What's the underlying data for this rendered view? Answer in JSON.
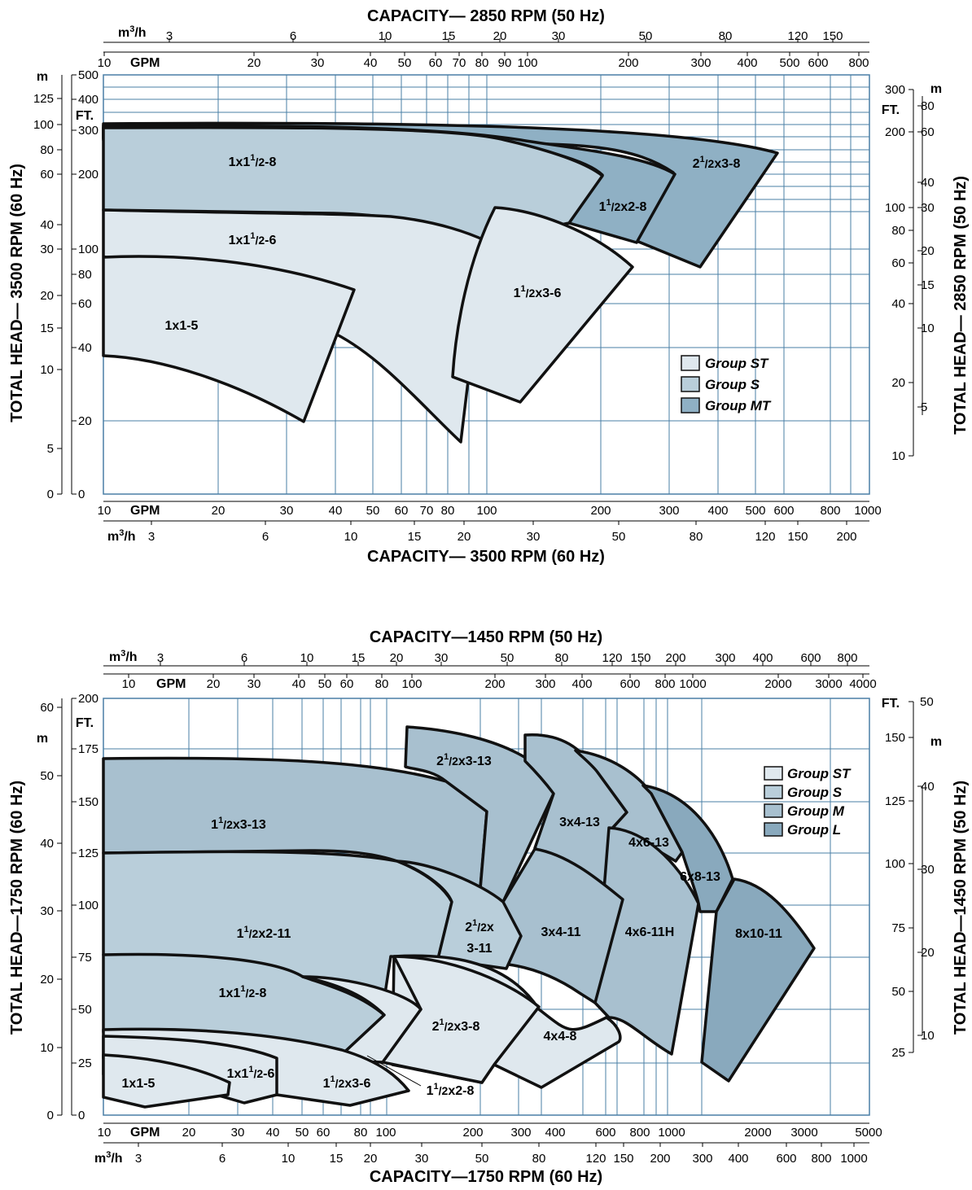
{
  "colors": {
    "group_st": "#dfe8ee",
    "group_s": "#b9ceda",
    "group_m": "#a8c0cf",
    "group_mt": "#8fb0c4",
    "group_l": "#89a9bd",
    "grid": "#4a7fa6"
  },
  "chart_data": [
    {
      "type": "area",
      "title_top": "CAPACITY— 2850 RPM (50 Hz)",
      "title_bottom": "CAPACITY— 3500 RPM (60 Hz)",
      "ylabel_left": "TOTAL HEAD— 3500 RPM (60 Hz)",
      "ylabel_right": "TOTAL HEAD— 2850 RPM (50 Hz)",
      "top_m3h_unit": "m3/h",
      "top_gpm_unit": "GPM",
      "bottom_gpm_unit": "GPM",
      "bottom_m3h_unit": "m3/h",
      "left_m_unit": "m",
      "left_ft_unit": "FT.",
      "right_ft_unit": "FT.",
      "right_m_unit": "m",
      "top_m3h_ticks": [
        "3",
        "6",
        "10",
        "15",
        "20",
        "30",
        "50",
        "80",
        "120",
        "150"
      ],
      "top_gpm_ticks": [
        "10",
        "20",
        "30",
        "40",
        "50",
        "60",
        "70",
        "80",
        "90",
        "100",
        "200",
        "300",
        "400",
        "500",
        "600",
        "800"
      ],
      "bottom_gpm_ticks": [
        "10",
        "20",
        "30",
        "40",
        "50",
        "60",
        "70",
        "80",
        "100",
        "200",
        "300",
        "400",
        "500",
        "600",
        "800",
        "1000"
      ],
      "bottom_m3h_ticks": [
        "3",
        "6",
        "10",
        "15",
        "20",
        "30",
        "50",
        "80",
        "120",
        "150",
        "200"
      ],
      "left_m_ticks": [
        "125",
        "100",
        "80",
        "60",
        "40",
        "30",
        "20",
        "15",
        "10",
        "5",
        "0"
      ],
      "left_ft_ticks": [
        "500",
        "400",
        "300",
        "200",
        "100",
        "80",
        "60",
        "40",
        "20",
        "0"
      ],
      "right_ft_ticks": [
        "300",
        "200",
        "100",
        "80",
        "60",
        "40",
        "20",
        "10"
      ],
      "right_m_ticks": [
        "80",
        "60",
        "40",
        "30",
        "20",
        "15",
        "10",
        "5"
      ],
      "legend": [
        {
          "label": "Group ST",
          "group": "st"
        },
        {
          "label": "Group S",
          "group": "s"
        },
        {
          "label": "Group MT",
          "group": "mt"
        }
      ],
      "pumps": [
        {
          "label": "1x1½-8",
          "group": "S"
        },
        {
          "label": "2½x3-8",
          "group": "MT"
        },
        {
          "label": "1½x2-8",
          "group": "MT"
        },
        {
          "label": "1x1½-6",
          "group": "ST"
        },
        {
          "label": "1½x3-6",
          "group": "ST"
        },
        {
          "label": "1x1-5",
          "group": "ST"
        }
      ]
    },
    {
      "type": "area",
      "title_top": "CAPACITY—1450 RPM (50 Hz)",
      "title_bottom": "CAPACITY—1750 RPM (60 Hz)",
      "ylabel_left": "TOTAL HEAD—1750 RPM (60 Hz)",
      "ylabel_right": "TOTAL HEAD—1450 RPM (50 Hz)",
      "top_m3h_unit": "m3/h",
      "top_gpm_unit": "GPM",
      "bottom_gpm_unit": "GPM",
      "bottom_m3h_unit": "m3/h",
      "left_m_unit": "m",
      "left_ft_unit": "FT.",
      "right_ft_unit": "FT.",
      "right_m_unit": "m",
      "top_m3h_ticks": [
        "3",
        "6",
        "10",
        "15",
        "20",
        "30",
        "50",
        "80",
        "120",
        "150",
        "200",
        "300",
        "400",
        "600",
        "800"
      ],
      "top_gpm_ticks": [
        "10",
        "20",
        "30",
        "40",
        "50",
        "60",
        "80",
        "100",
        "200",
        "300",
        "400",
        "600",
        "800",
        "1000",
        "2000",
        "3000",
        "4000"
      ],
      "bottom_gpm_ticks": [
        "10",
        "20",
        "30",
        "40",
        "50",
        "60",
        "80",
        "100",
        "200",
        "300",
        "400",
        "600",
        "800",
        "1000",
        "2000",
        "3000",
        "5000"
      ],
      "bottom_m3h_ticks": [
        "3",
        "6",
        "10",
        "15",
        "20",
        "30",
        "50",
        "80",
        "120",
        "150",
        "200",
        "300",
        "400",
        "600",
        "800",
        "1000"
      ],
      "left_m_ticks": [
        "60",
        "50",
        "40",
        "30",
        "20",
        "10",
        "0"
      ],
      "left_ft_ticks": [
        "200",
        "175",
        "150",
        "125",
        "100",
        "75",
        "50",
        "25",
        "0"
      ],
      "right_ft_ticks": [
        "50",
        "150",
        "125",
        "100",
        "75",
        "50",
        "25"
      ],
      "right_m_ticks": [
        "40",
        "30",
        "20",
        "10"
      ],
      "legend": [
        {
          "label": "Group ST",
          "group": "st"
        },
        {
          "label": "Group S",
          "group": "s"
        },
        {
          "label": "Group M",
          "group": "m"
        },
        {
          "label": "Group L",
          "group": "l"
        }
      ],
      "pumps": [
        {
          "label": "2½x3-13"
        },
        {
          "label": "1½x3-13"
        },
        {
          "label": "3x4-13"
        },
        {
          "label": "4x6-13"
        },
        {
          "label": "6x8-13"
        },
        {
          "label": "1½x2-11"
        },
        {
          "label": "2½x 3-11"
        },
        {
          "label": "3x4-11"
        },
        {
          "label": "4x6-11H"
        },
        {
          "label": "8x10-11"
        },
        {
          "label": "1x1½-8"
        },
        {
          "label": "2½x3-8"
        },
        {
          "label": "4x4-8"
        },
        {
          "label": "1x1-5"
        },
        {
          "label": "1x1½-6"
        },
        {
          "label": "1½x3-6"
        },
        {
          "label": "1½x2-8"
        }
      ]
    }
  ]
}
